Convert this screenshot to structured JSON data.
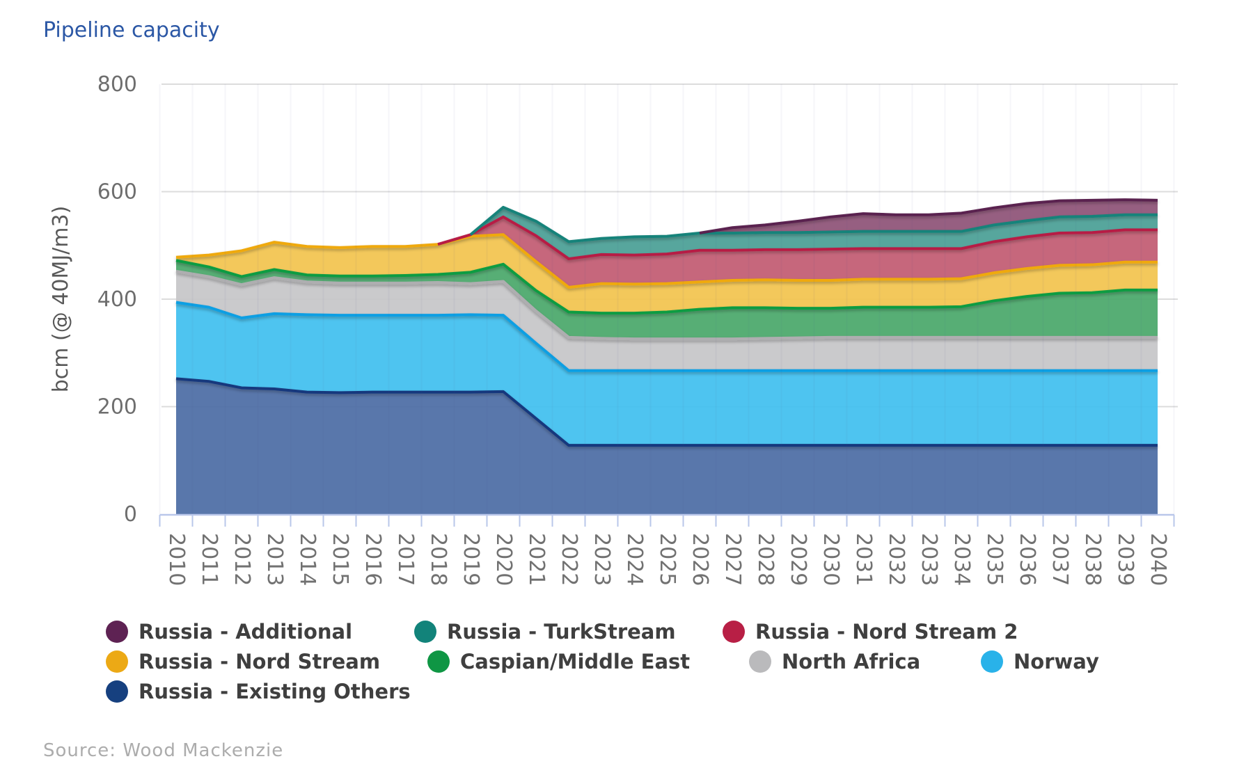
{
  "title": "Pipeline capacity",
  "source": "Source: Wood Mackenzie",
  "chart_data": {
    "type": "area",
    "stacked": true,
    "title": "Pipeline capacity",
    "xlabel": "",
    "ylabel": "bcm (@ 40MJ/m3)",
    "ylim": [
      0,
      800
    ],
    "y_ticks": [
      0,
      200,
      400,
      600,
      800
    ],
    "grid": "horizontal",
    "legend_position": "bottom",
    "x": [
      2010,
      2011,
      2012,
      2013,
      2014,
      2015,
      2016,
      2017,
      2018,
      2019,
      2020,
      2021,
      2022,
      2023,
      2024,
      2025,
      2026,
      2027,
      2028,
      2029,
      2030,
      2031,
      2032,
      2033,
      2034,
      2035,
      2036,
      2037,
      2038,
      2039,
      2040
    ],
    "series": [
      {
        "name": "Russia - Existing Others",
        "fill": "#4c6da5",
        "stroke": "#16377d",
        "values": [
          252,
          247,
          235,
          233,
          227,
          226,
          227,
          227,
          227,
          227,
          228,
          178,
          128,
          128,
          128,
          128,
          128,
          128,
          128,
          128,
          128,
          128,
          128,
          128,
          128,
          128,
          128,
          128,
          128,
          128,
          128
        ]
      },
      {
        "name": "Norway",
        "fill": "#41c0ef",
        "stroke": "#0a9fe3",
        "values": [
          142,
          138,
          130,
          140,
          144,
          144,
          143,
          143,
          143,
          144,
          142,
          140,
          139,
          139,
          139,
          139,
          139,
          139,
          139,
          139,
          139,
          139,
          139,
          139,
          139,
          139,
          139,
          139,
          139,
          139,
          139
        ]
      },
      {
        "name": "North Africa",
        "fill": "#c6c6c8",
        "stroke": "#aeaeb0",
        "values": [
          58,
          57,
          62,
          67,
          61,
          60,
          60,
          60,
          61,
          58,
          63,
          60,
          62,
          60,
          59,
          59,
          59,
          59,
          60,
          61,
          62,
          62,
          62,
          62,
          62,
          62,
          62,
          62,
          62,
          62,
          62
        ]
      },
      {
        "name": "Caspian/Middle East",
        "fill": "#4aa86b",
        "stroke": "#0a9c43",
        "values": [
          20,
          18,
          15,
          15,
          13,
          13,
          13,
          14,
          15,
          21,
          32,
          38,
          47,
          47,
          48,
          50,
          55,
          58,
          57,
          55,
          54,
          56,
          56,
          56,
          57,
          68,
          76,
          82,
          83,
          88,
          88
        ]
      },
      {
        "name": "Russia - Nord Stream",
        "fill": "#f2c44f",
        "stroke": "#efa90f",
        "values": [
          6,
          22,
          48,
          51,
          53,
          53,
          55,
          54,
          56,
          67,
          55,
          54,
          46,
          55,
          54,
          53,
          51,
          51,
          52,
          52,
          52,
          52,
          52,
          52,
          52,
          52,
          52,
          52,
          52,
          52,
          52
        ]
      },
      {
        "name": "Russia - Nord Stream 2",
        "fill": "#c25b72",
        "stroke": "#b71f45",
        "values": [
          0,
          0,
          0,
          0,
          0,
          0,
          0,
          0,
          0,
          3,
          33,
          48,
          53,
          54,
          54,
          55,
          59,
          56,
          56,
          57,
          58,
          57,
          57,
          57,
          56,
          58,
          59,
          60,
          60,
          60,
          60
        ]
      },
      {
        "name": "Russia - TurkStream",
        "fill": "#4a9f96",
        "stroke": "#12837a",
        "values": [
          0,
          0,
          0,
          0,
          0,
          0,
          0,
          0,
          0,
          0,
          18,
          27,
          32,
          30,
          34,
          33,
          32,
          32,
          32,
          32,
          32,
          32,
          32,
          32,
          32,
          31,
          30,
          30,
          30,
          28,
          28
        ]
      },
      {
        "name": "Russia - Additional",
        "fill": "#8e5377",
        "stroke": "#5a2050",
        "values": [
          0,
          0,
          0,
          0,
          0,
          0,
          0,
          0,
          0,
          0,
          0,
          0,
          0,
          0,
          0,
          0,
          0,
          10,
          14,
          21,
          28,
          33,
          31,
          31,
          34,
          32,
          32,
          30,
          30,
          28,
          27
        ]
      }
    ]
  },
  "legend_rows": [
    [
      {
        "label": "Russia - Additional",
        "color": "#5e2253"
      },
      {
        "label": "Russia - TurkStream",
        "color": "#12837a"
      },
      {
        "label": "Russia - Nord Stream 2",
        "color": "#b81f45"
      }
    ],
    [
      {
        "label": "Russia - Nord Stream",
        "color": "#eca915"
      },
      {
        "label": "Caspian/Middle East",
        "color": "#0f9644"
      },
      {
        "label": "North Africa",
        "color": "#bababc"
      },
      {
        "label": "Norway",
        "color": "#29b2e9"
      }
    ],
    [
      {
        "label": "Russia - Existing Others",
        "color": "#16407f"
      }
    ]
  ]
}
